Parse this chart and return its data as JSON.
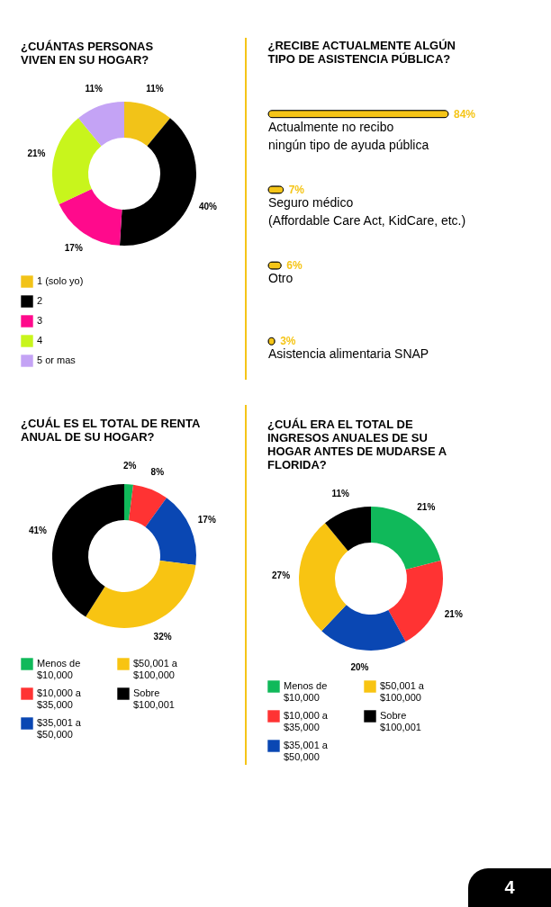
{
  "chart_data": [
    {
      "type": "donut",
      "title": "¿CUÁNTAS PERSONAS\nVIVEN EN SU HOGAR?",
      "categories": [
        "1 (solo yo)",
        "2",
        "3",
        "4",
        "5 or mas"
      ],
      "values": [
        11,
        40,
        17,
        21,
        11
      ],
      "value_labels": [
        "11%",
        "40%",
        "17%",
        "21%",
        "11%"
      ],
      "colors": [
        "#f2c318",
        "#000000",
        "#ff0a8c",
        "#c8f51c",
        "#c4a3f5"
      ],
      "legend": "bottom"
    },
    {
      "type": "bar",
      "orientation": "horizontal",
      "title": "¿RECIBE ACTUALMENTE ALGÚN\nTIPO DE ASISTENCIA PÚBLICA?",
      "categories": [
        "Actualmente no recibo\nningún tipo de ayuda pública",
        "Seguro médico\n(Affordable Care Act, KidCare, etc.)",
        "Otro",
        "Asistencia alimentaria SNAP"
      ],
      "values": [
        84,
        7,
        6,
        3
      ],
      "value_labels": [
        "84%",
        "7%",
        "6%",
        "3%"
      ],
      "color": "#f5c518"
    },
    {
      "type": "donut",
      "title": "¿CUÁL ES EL TOTAL DE RENTA\nANUAL DE SU HOGAR?",
      "categories": [
        "Menos de\n$10,000",
        "$10,000 a\n$35,000",
        "$35,001 a\n$50,000",
        "$50,001 a\n$100,000",
        "Sobre\n$100,001"
      ],
      "values": [
        2,
        8,
        17,
        32,
        41
      ],
      "value_labels": [
        "2%",
        "8%",
        "17%",
        "32%",
        "41%"
      ],
      "colors": [
        "#10b95a",
        "#ff3333",
        "#0a47b3",
        "#f8c412",
        "#000000"
      ],
      "legend": "bottom"
    },
    {
      "type": "donut",
      "title": "¿CUÁL ERA EL TOTAL DE\nINGRESOS ANUALES DE SU\nHOGAR ANTES DE MUDARSE A\nFLORIDA?",
      "categories": [
        "Menos de\n$10,000",
        "$10,000 a\n$35,000",
        "$35,001 a\n$50,000",
        "$50,001 a\n$100,000",
        "Sobre\n$100,001"
      ],
      "values": [
        21,
        21,
        20,
        27,
        11
      ],
      "value_labels": [
        "21%",
        "21%",
        "20%",
        "27%",
        "11%"
      ],
      "colors": [
        "#10b95a",
        "#ff3333",
        "#0a47b3",
        "#f8c412",
        "#000000"
      ],
      "legend": "bottom",
      "annotations": [
        "4"
      ]
    }
  ]
}
